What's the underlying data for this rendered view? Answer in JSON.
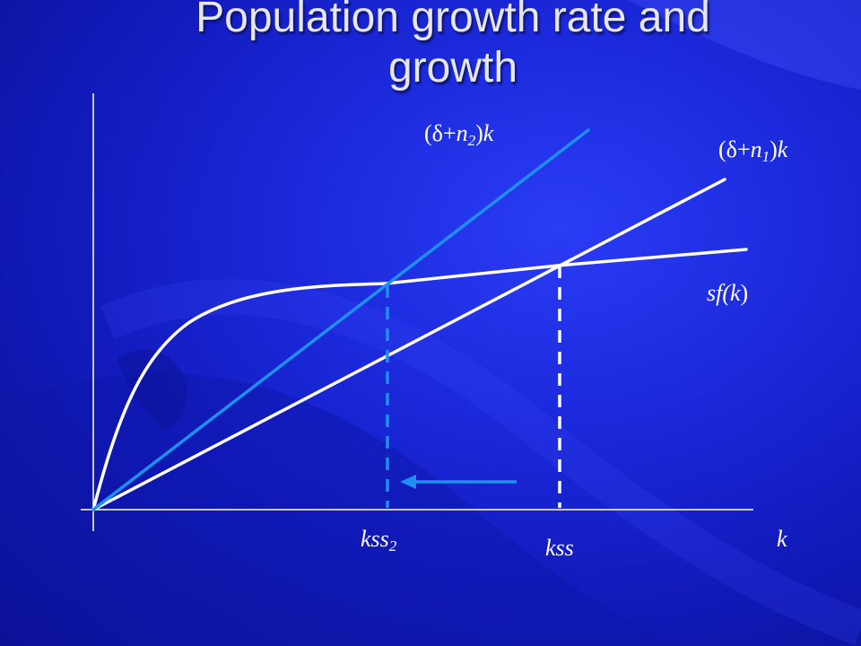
{
  "slide": {
    "title_line1": "Population growth rate and",
    "title_line2": "growth"
  },
  "labels": {
    "line_n2": {
      "open": "(",
      "delta": "δ",
      "plus": "+",
      "var": "n",
      "sub": "2",
      "close": ")",
      "k": "k"
    },
    "line_n1": {
      "open": "(",
      "delta": "δ",
      "plus": "+",
      "var": "n",
      "sub": "1",
      "close": ")",
      "k": "k"
    },
    "production": {
      "s": "sf(",
      "k": "k",
      "close": ")"
    },
    "kss2": {
      "base": "kss",
      "sub": "2"
    },
    "kss": "kss",
    "k_axis": "k"
  },
  "colors": {
    "background": "#1a28d9",
    "white_line": "#ffffff",
    "blue_line": "#1e90f0",
    "title": "#e6e6ec"
  }
}
